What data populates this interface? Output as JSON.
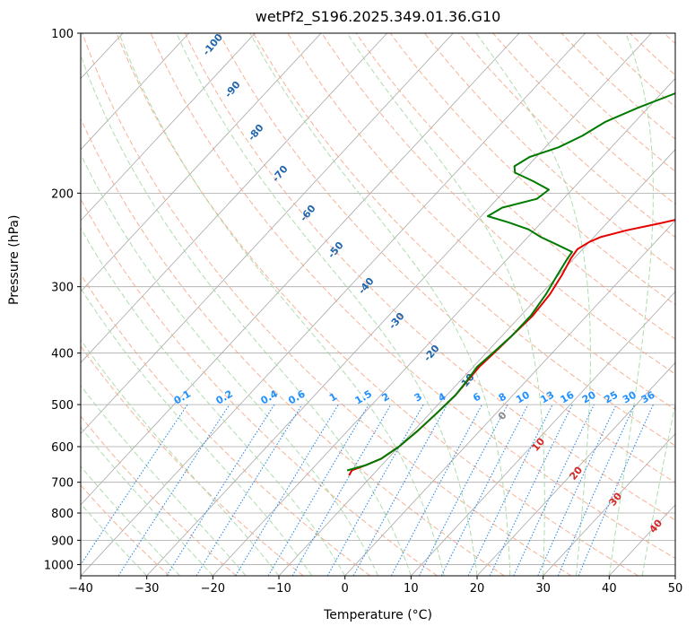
{
  "chart_data": {
    "type": "line",
    "subtype": "skew-t log-p diagram",
    "title": "wetPf2_S196.2025.349.01.36.G10",
    "xlabel": "Temperature (°C)",
    "ylabel": "Pressure (hPa)",
    "xlim": [
      -40,
      50
    ],
    "ylim": [
      1050,
      100
    ],
    "yscale": "log",
    "grid": true,
    "x_ticks": [
      "−40",
      "−30",
      "−20",
      "−10",
      "0",
      "10",
      "20",
      "30",
      "40",
      "50"
    ],
    "x_tick_values": [
      -40,
      -30,
      -20,
      -10,
      0,
      10,
      20,
      30,
      40,
      50
    ],
    "y_ticks": [
      "100",
      "200",
      "300",
      "400",
      "500",
      "600",
      "700",
      "800",
      "900",
      "1000"
    ],
    "y_tick_values": [
      100,
      200,
      300,
      400,
      500,
      600,
      700,
      800,
      900,
      1000
    ],
    "series": [
      {
        "role": "temperature",
        "color": "#e60000",
        "points": [
          [
            -13.5,
            680
          ],
          [
            -13.8,
            665
          ],
          [
            -12.4,
            650
          ],
          [
            -11.0,
            632
          ],
          [
            -10.0,
            600
          ],
          [
            -9.4,
            560
          ],
          [
            -9.0,
            520
          ],
          [
            -8.7,
            480
          ],
          [
            -8.9,
            450
          ],
          [
            -9.1,
            425
          ],
          [
            -8.8,
            400
          ],
          [
            -8.5,
            370
          ],
          [
            -8.2,
            340
          ],
          [
            -8.6,
            310
          ],
          [
            -9.5,
            285
          ],
          [
            -10.5,
            265
          ],
          [
            -10.8,
            255
          ],
          [
            -10.0,
            247
          ],
          [
            -9.0,
            242
          ],
          [
            -6.0,
            235
          ],
          [
            -2.0,
            228
          ],
          [
            3.0,
            219
          ],
          [
            7.5,
            208
          ],
          [
            12.0,
            195
          ],
          [
            17.5,
            182
          ],
          [
            24.0,
            168
          ],
          [
            32.0,
            152
          ],
          [
            40.0,
            138
          ],
          [
            48.0,
            124
          ],
          [
            55.0,
            112
          ],
          [
            62.0,
            100
          ]
        ]
      },
      {
        "role": "dewpoint",
        "color": "#007a00",
        "points": [
          [
            -14.5,
            665
          ],
          [
            -12.4,
            650
          ],
          [
            -11.0,
            632
          ],
          [
            -10.0,
            600
          ],
          [
            -9.4,
            560
          ],
          [
            -9.0,
            520
          ],
          [
            -8.7,
            480
          ],
          [
            -9.0,
            450
          ],
          [
            -9.4,
            425
          ],
          [
            -9.0,
            400
          ],
          [
            -8.5,
            370
          ],
          [
            -8.5,
            340
          ],
          [
            -9.2,
            310
          ],
          [
            -10.2,
            285
          ],
          [
            -11.0,
            265
          ],
          [
            -11.2,
            258
          ],
          [
            -14.5,
            250
          ],
          [
            -18.0,
            242
          ],
          [
            -21.0,
            234
          ],
          [
            -25.0,
            227
          ],
          [
            -29.0,
            221
          ],
          [
            -28.0,
            213
          ],
          [
            -24.0,
            205
          ],
          [
            -23.5,
            197
          ],
          [
            -27.0,
            190
          ],
          [
            -31.0,
            183
          ],
          [
            -32.0,
            178
          ],
          [
            -31.0,
            171
          ],
          [
            -28.0,
            164
          ],
          [
            -26.0,
            156
          ],
          [
            -24.5,
            147
          ],
          [
            -21.5,
            138
          ],
          [
            -18.0,
            130
          ],
          [
            -15.5,
            122
          ],
          [
            -13.5,
            115
          ],
          [
            -11.0,
            108
          ],
          [
            -9.0,
            100
          ]
        ]
      }
    ],
    "dry_adiabat_labels": [
      "-100",
      "-90",
      "-80",
      "-70",
      "-60",
      "-50",
      "-40",
      "-30",
      "-20",
      "-10"
    ],
    "mixing_ratio_labels": [
      "0.1",
      "0.2",
      "0.4",
      "0.6",
      "1",
      "1.5",
      "2",
      "3",
      "4",
      "6",
      "8",
      "10",
      "13",
      "16",
      "20",
      "25",
      "30",
      "36"
    ],
    "moist_adiabat_labels": [
      "0",
      "10",
      "20",
      "30",
      "40"
    ],
    "colors": {
      "temperature": "#e60000",
      "dewpoint": "#007a00",
      "dry_adiabat": "#f4a582",
      "moist_adiabat": "#a6d8a6",
      "mixing_ratio": "#2e8ce6",
      "isotherm": "#a8a8a8",
      "isobar": "#a8a8a8",
      "dry_adiabat_label": "#2166ac",
      "mixing_ratio_label": "#1e90ff",
      "moist_adiabat_label": "#d62728",
      "moist_zero_label": "#888888"
    }
  }
}
